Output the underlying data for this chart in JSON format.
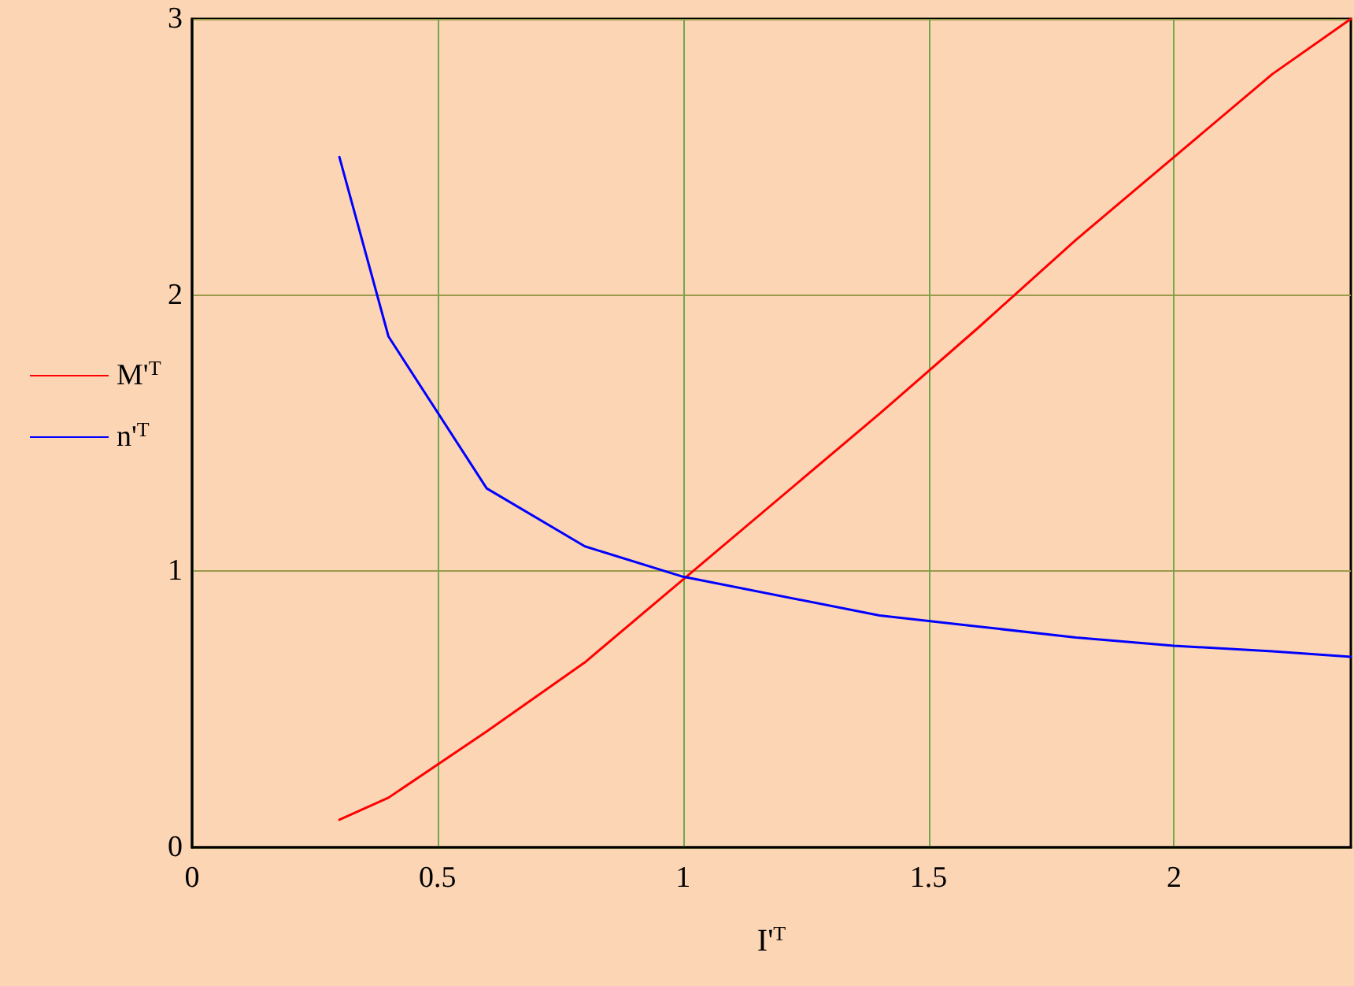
{
  "chart_data": {
    "type": "line",
    "xlabel": "I'$^{T}$",
    "xlim": [
      0,
      2.36
    ],
    "xticks": [
      0,
      0.5,
      1,
      1.5,
      2
    ],
    "ylim": [
      0,
      3
    ],
    "yticks": [
      0,
      1,
      2,
      3
    ],
    "grid": true,
    "legend": "left",
    "marker": "none",
    "line_style": "solid",
    "x": [
      0.3,
      0.4,
      0.6,
      0.8,
      1.0,
      1.4,
      1.6,
      1.8,
      2.0,
      2.2,
      2.36
    ],
    "series": [
      {
        "name": "M'$^{T}$",
        "color": "#ff0000",
        "values": [
          0.1,
          0.18,
          0.42,
          0.67,
          0.97,
          1.57,
          1.88,
          2.2,
          2.5,
          2.8,
          3.0
        ]
      },
      {
        "name": "n'$^{T}$",
        "color": "#0000ff",
        "values": [
          2.5,
          1.85,
          1.3,
          1.09,
          0.98,
          0.84,
          0.8,
          0.76,
          0.73,
          0.71,
          0.69
        ]
      }
    ]
  }
}
